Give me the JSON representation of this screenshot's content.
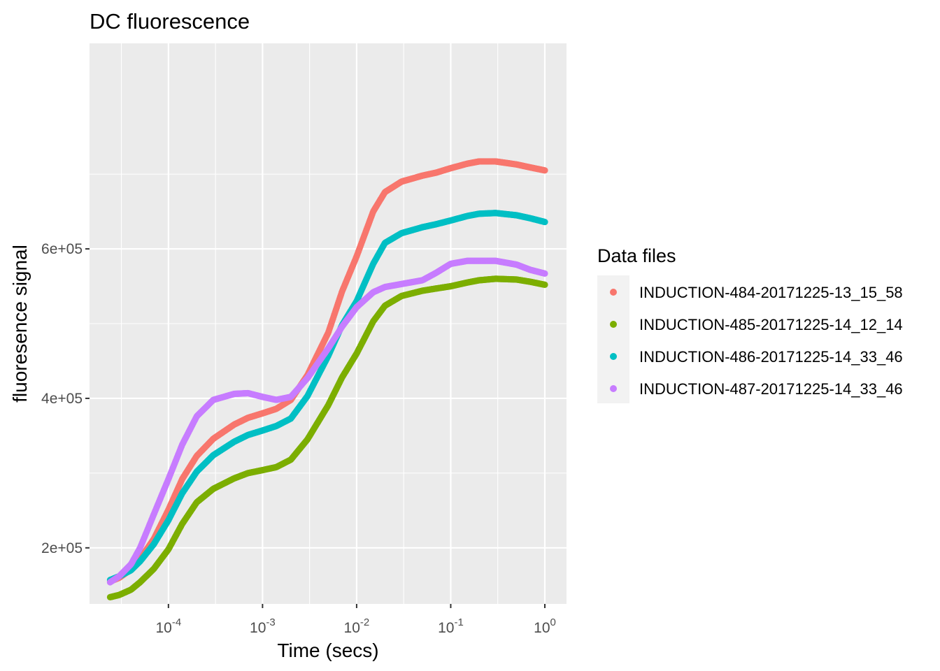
{
  "chart_data": {
    "type": "scatter",
    "title": "DC fluorescence",
    "xlabel": "Time (secs)",
    "ylabel": "fluoresence signal",
    "x_scale": "log10",
    "xlim": [
      1.45e-05,
      1.7
    ],
    "ylim": [
      125000,
      875000
    ],
    "x_ticks": [
      {
        "value": 0.0001,
        "base": "10",
        "exp": "-4"
      },
      {
        "value": 0.001,
        "base": "10",
        "exp": "-3"
      },
      {
        "value": 0.01,
        "base": "10",
        "exp": "-2"
      },
      {
        "value": 0.1,
        "base": "10",
        "exp": "-1"
      },
      {
        "value": 1,
        "base": "10",
        "exp": "0"
      }
    ],
    "y_ticks": [
      {
        "value": 200000,
        "label": "2e+05"
      },
      {
        "value": 400000,
        "label": "4e+05"
      },
      {
        "value": 600000,
        "label": "6e+05"
      }
    ],
    "grid": true,
    "legend": {
      "title": "Data files",
      "position": "right"
    },
    "series": [
      {
        "name": "INDUCTION-484-20171225-13_15_58",
        "color": "#F8766D",
        "x": [
          2.4e-05,
          3e-05,
          4e-05,
          5e-05,
          7e-05,
          0.0001,
          0.00014,
          0.0002,
          0.0003,
          0.0005,
          0.0007,
          0.001,
          0.0014,
          0.002,
          0.003,
          0.005,
          0.007,
          0.01,
          0.015,
          0.02,
          0.03,
          0.05,
          0.07,
          0.1,
          0.15,
          0.2,
          0.3,
          0.5,
          0.7,
          1.0
        ],
        "y": [
          155000,
          160000,
          171000,
          185000,
          212000,
          251000,
          292000,
          323000,
          346000,
          365000,
          374000,
          380000,
          386000,
          398000,
          431000,
          488000,
          543000,
          590000,
          650000,
          676000,
          690000,
          698000,
          702000,
          708000,
          714000,
          717000,
          717000,
          713000,
          709000,
          705000
        ]
      },
      {
        "name": "INDUCTION-485-20171225-14_12_14",
        "color": "#7CAE00",
        "x": [
          2.4e-05,
          3e-05,
          4e-05,
          5e-05,
          7e-05,
          0.0001,
          0.00014,
          0.0002,
          0.0003,
          0.0005,
          0.0007,
          0.001,
          0.0014,
          0.002,
          0.003,
          0.005,
          0.007,
          0.01,
          0.015,
          0.02,
          0.03,
          0.05,
          0.07,
          0.1,
          0.15,
          0.2,
          0.3,
          0.5,
          0.7,
          1.0
        ],
        "y": [
          134000,
          137000,
          144000,
          154000,
          172000,
          198000,
          232000,
          261000,
          279000,
          293000,
          300000,
          304000,
          308000,
          318000,
          345000,
          391000,
          428000,
          460000,
          503000,
          524000,
          537000,
          544000,
          547000,
          550000,
          555000,
          558000,
          560000,
          559000,
          556000,
          552000
        ]
      },
      {
        "name": "INDUCTION-486-20171225-14_33_46",
        "color": "#00BFC4",
        "x": [
          2.4e-05,
          3e-05,
          4e-05,
          5e-05,
          7e-05,
          0.0001,
          0.00014,
          0.0002,
          0.0003,
          0.0005,
          0.0007,
          0.001,
          0.0014,
          0.002,
          0.003,
          0.005,
          0.007,
          0.01,
          0.015,
          0.02,
          0.03,
          0.05,
          0.07,
          0.1,
          0.15,
          0.2,
          0.3,
          0.5,
          0.7,
          1.0
        ],
        "y": [
          157000,
          162000,
          170000,
          182000,
          205000,
          237000,
          273000,
          302000,
          324000,
          342000,
          351000,
          357000,
          363000,
          373000,
          403000,
          457000,
          498000,
          530000,
          580000,
          608000,
          621000,
          629000,
          633000,
          638000,
          644000,
          647000,
          648000,
          645000,
          641000,
          636000
        ]
      },
      {
        "name": "INDUCTION-487-20171225-14_33_46",
        "color": "#C77CFF",
        "x": [
          2.4e-05,
          3e-05,
          4e-05,
          5e-05,
          7e-05,
          0.0001,
          0.00014,
          0.0002,
          0.0003,
          0.0005,
          0.0007,
          0.001,
          0.0014,
          0.002,
          0.003,
          0.005,
          0.007,
          0.01,
          0.015,
          0.02,
          0.03,
          0.05,
          0.07,
          0.1,
          0.15,
          0.2,
          0.3,
          0.5,
          0.7,
          1.0
        ],
        "y": [
          154000,
          162000,
          178000,
          200000,
          245000,
          292000,
          338000,
          376000,
          398000,
          406000,
          407000,
          402000,
          398000,
          402000,
          427000,
          467000,
          496000,
          522000,
          542000,
          549000,
          553000,
          558000,
          568000,
          580000,
          584000,
          584000,
          584000,
          579000,
          572000,
          567000
        ]
      }
    ]
  }
}
